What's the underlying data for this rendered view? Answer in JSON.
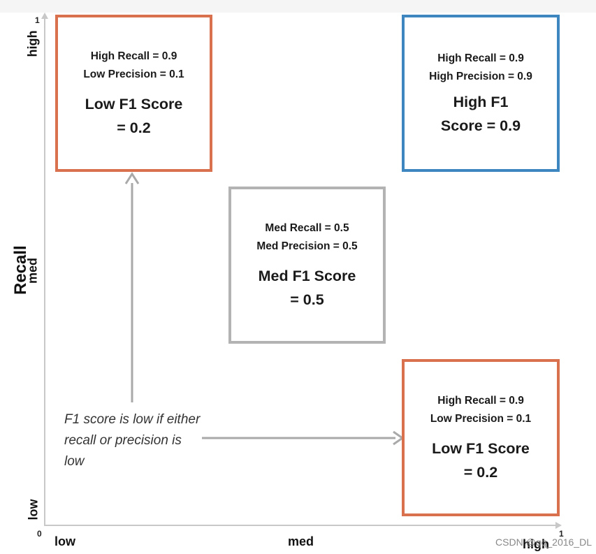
{
  "axes": {
    "x_origin_tick": "0",
    "x_end_tick": "1",
    "y_end_tick": "1",
    "x_labels": [
      "low",
      "med",
      "high"
    ],
    "y_labels": [
      "low",
      "med",
      "high"
    ],
    "y_title": "Recall"
  },
  "boxes": [
    {
      "line1": "High Recall = 0.9",
      "line2": "Low Precision = 0.1",
      "score": "Low F1 Score\n= 0.2",
      "color": "#d9704e"
    },
    {
      "line1": "High Recall = 0.9",
      "line2": "High Precision = 0.9",
      "score": "High F1\nScore = 0.9",
      "color": "#3d86c0"
    },
    {
      "line1": "Med Recall = 0.5",
      "line2": "Med Precision = 0.5",
      "score": "Med F1 Score\n= 0.5",
      "color": "#b3b3b3"
    },
    {
      "line1": "High Recall = 0.9",
      "line2": "Low Precision = 0.1",
      "score": "Low F1 Score\n= 0.2",
      "color": "#d9704e"
    }
  ],
  "note": "F1 score is low if either recall or precision is low",
  "watermark": "CSDN @qq_2016_DL",
  "colors": {
    "axis": "#c8c8c8",
    "arrow": "#a9a9a9"
  }
}
